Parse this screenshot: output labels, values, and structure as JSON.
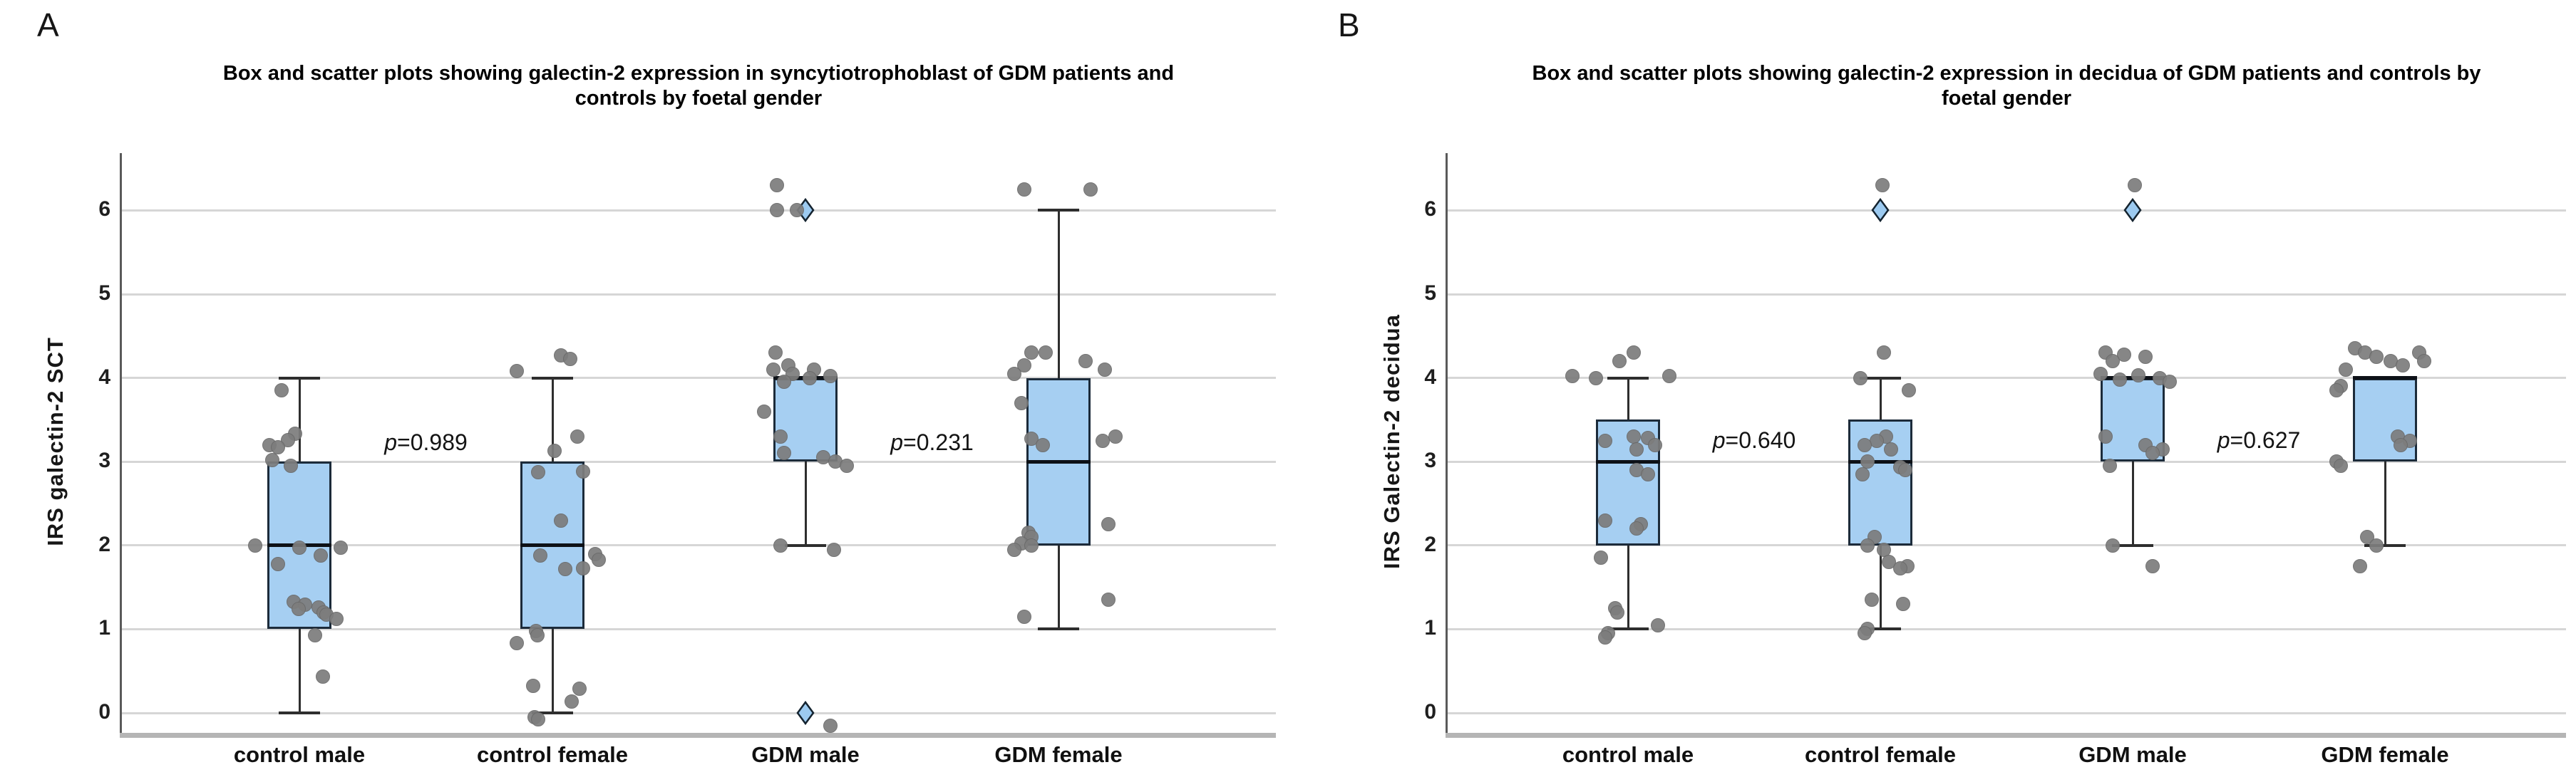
{
  "figure": {
    "panels": [
      {
        "corner_label": "A",
        "title_lines": [
          "Box and scatter plots showing galectin-2 expression in syncytiotrophoblast of GDM patients and",
          "controls by foetal gender"
        ],
        "y_axis_label": "IRS galectin-2 SCT"
      },
      {
        "corner_label": "B",
        "title_lines": [
          "Box and scatter plots showing galectin-2 expression in decidua of GDM patients and controls by",
          "foetal gender"
        ],
        "y_axis_label": "IRS Galectin-2 decidua"
      }
    ]
  },
  "colors": {
    "box_fill": "#a6cff2",
    "box_border": "#1c2b3a",
    "median": "#0d1117",
    "dot": "#7d7d7d",
    "outlier_fill": "#9ccaf0",
    "outlier_border": "#14232f",
    "gridline": "#d6d6d6"
  },
  "chart_data": [
    {
      "type": "box+scatter",
      "title": "Box and scatter plots showing galectin-2 expression in syncytiotrophoblast of GDM patients and controls by foetal gender",
      "ylabel": "IRS galectin-2 SCT",
      "xlabel": "",
      "categories": [
        "control male",
        "control female",
        "GDM male",
        "GDM female"
      ],
      "yticks": [
        0,
        1,
        2,
        3,
        4,
        5,
        6
      ],
      "ylim": [
        -0.25,
        6.7
      ],
      "grid": true,
      "legend": false,
      "boxes": [
        {
          "category": "control male",
          "q1": 1,
          "median": 2,
          "q3": 3,
          "whisker_low": 0,
          "whisker_high": 4,
          "outliers": []
        },
        {
          "category": "control female",
          "q1": 1,
          "median": 2,
          "q3": 3,
          "whisker_low": 0,
          "whisker_high": 4,
          "outliers": []
        },
        {
          "category": "GDM male",
          "q1": 3,
          "median": 4,
          "q3": 4,
          "whisker_low": 2,
          "whisker_high": 4,
          "outliers": [
            6,
            0
          ]
        },
        {
          "category": "GDM female",
          "q1": 2,
          "median": 3,
          "q3": 4,
          "whisker_low": 1,
          "whisker_high": 6,
          "outliers": []
        }
      ],
      "annotations": [
        {
          "text": "p=0.989",
          "between": [
            0,
            1
          ],
          "y": 3.22
        },
        {
          "text": "p=0.231",
          "between": [
            2,
            3
          ],
          "y": 3.22
        }
      ],
      "points": [
        {
          "cat": 0,
          "y": 3.85,
          "dx": -25
        },
        {
          "cat": 0,
          "y": 3.33,
          "dx": -6
        },
        {
          "cat": 0,
          "y": 3.26,
          "dx": -16
        },
        {
          "cat": 0,
          "y": 3.2,
          "dx": -42
        },
        {
          "cat": 0,
          "y": 3.17,
          "dx": -30
        },
        {
          "cat": 0,
          "y": 3.02,
          "dx": -38
        },
        {
          "cat": 0,
          "y": 2.95,
          "dx": -12
        },
        {
          "cat": 0,
          "y": 2.0,
          "dx": -62
        },
        {
          "cat": 0,
          "y": 1.97,
          "dx": 0
        },
        {
          "cat": 0,
          "y": 1.97,
          "dx": 58
        },
        {
          "cat": 0,
          "y": 1.88,
          "dx": 30
        },
        {
          "cat": 0,
          "y": 1.78,
          "dx": -30
        },
        {
          "cat": 0,
          "y": 1.33,
          "dx": -8
        },
        {
          "cat": 0,
          "y": 1.29,
          "dx": 8
        },
        {
          "cat": 0,
          "y": 1.26,
          "dx": 27
        },
        {
          "cat": 0,
          "y": 1.24,
          "dx": -1
        },
        {
          "cat": 0,
          "y": 1.2,
          "dx": 34
        },
        {
          "cat": 0,
          "y": 1.17,
          "dx": 38
        },
        {
          "cat": 0,
          "y": 1.12,
          "dx": 52
        },
        {
          "cat": 0,
          "y": 0.93,
          "dx": 22
        },
        {
          "cat": 0,
          "y": 0.43,
          "dx": 33
        },
        {
          "cat": 1,
          "y": 4.27,
          "dx": 12
        },
        {
          "cat": 1,
          "y": 4.23,
          "dx": 25
        },
        {
          "cat": 1,
          "y": 4.08,
          "dx": -50
        },
        {
          "cat": 1,
          "y": 3.3,
          "dx": 35
        },
        {
          "cat": 1,
          "y": 3.13,
          "dx": 3
        },
        {
          "cat": 1,
          "y": 2.88,
          "dx": 43
        },
        {
          "cat": 1,
          "y": 2.87,
          "dx": -20
        },
        {
          "cat": 1,
          "y": 2.3,
          "dx": 12
        },
        {
          "cat": 1,
          "y": 1.9,
          "dx": 60
        },
        {
          "cat": 1,
          "y": 1.88,
          "dx": -17
        },
        {
          "cat": 1,
          "y": 1.83,
          "dx": 65
        },
        {
          "cat": 1,
          "y": 1.73,
          "dx": 43
        },
        {
          "cat": 1,
          "y": 1.72,
          "dx": 18
        },
        {
          "cat": 1,
          "y": 0.98,
          "dx": -23
        },
        {
          "cat": 1,
          "y": 0.93,
          "dx": -21
        },
        {
          "cat": 1,
          "y": 0.83,
          "dx": -50
        },
        {
          "cat": 1,
          "y": 0.32,
          "dx": -27
        },
        {
          "cat": 1,
          "y": 0.29,
          "dx": 38
        },
        {
          "cat": 1,
          "y": 0.14,
          "dx": 27
        },
        {
          "cat": 1,
          "y": -0.05,
          "dx": -25
        },
        {
          "cat": 1,
          "y": -0.08,
          "dx": -20
        },
        {
          "cat": 2,
          "y": 6.3,
          "dx": -40
        },
        {
          "cat": 2,
          "y": 6.0,
          "dx": -40
        },
        {
          "cat": 2,
          "y": 6.0,
          "dx": -12
        },
        {
          "cat": 2,
          "y": 4.3,
          "dx": -42
        },
        {
          "cat": 2,
          "y": 4.15,
          "dx": -24
        },
        {
          "cat": 2,
          "y": 4.1,
          "dx": -45
        },
        {
          "cat": 2,
          "y": 4.1,
          "dx": 12
        },
        {
          "cat": 2,
          "y": 4.05,
          "dx": -18
        },
        {
          "cat": 2,
          "y": 4.02,
          "dx": 35
        },
        {
          "cat": 2,
          "y": 4.0,
          "dx": 6
        },
        {
          "cat": 2,
          "y": 3.95,
          "dx": -30
        },
        {
          "cat": 2,
          "y": 3.6,
          "dx": -58
        },
        {
          "cat": 2,
          "y": 3.3,
          "dx": -35
        },
        {
          "cat": 2,
          "y": 3.1,
          "dx": -30
        },
        {
          "cat": 2,
          "y": 3.05,
          "dx": 25
        },
        {
          "cat": 2,
          "y": 3.0,
          "dx": 42
        },
        {
          "cat": 2,
          "y": 2.95,
          "dx": 58
        },
        {
          "cat": 2,
          "y": 2.0,
          "dx": -35
        },
        {
          "cat": 2,
          "y": 1.95,
          "dx": 40
        },
        {
          "cat": 2,
          "y": -0.15,
          "dx": 35
        },
        {
          "cat": 3,
          "y": 6.25,
          "dx": -48
        },
        {
          "cat": 3,
          "y": 6.25,
          "dx": 45
        },
        {
          "cat": 3,
          "y": 4.3,
          "dx": -38
        },
        {
          "cat": 3,
          "y": 4.3,
          "dx": -18
        },
        {
          "cat": 3,
          "y": 4.2,
          "dx": 38
        },
        {
          "cat": 3,
          "y": 4.15,
          "dx": -48
        },
        {
          "cat": 3,
          "y": 4.1,
          "dx": 65
        },
        {
          "cat": 3,
          "y": 4.05,
          "dx": -62
        },
        {
          "cat": 3,
          "y": 3.7,
          "dx": -52
        },
        {
          "cat": 3,
          "y": 3.3,
          "dx": 80
        },
        {
          "cat": 3,
          "y": 3.27,
          "dx": -38
        },
        {
          "cat": 3,
          "y": 3.25,
          "dx": 62
        },
        {
          "cat": 3,
          "y": 3.2,
          "dx": -22
        },
        {
          "cat": 3,
          "y": 2.25,
          "dx": 70
        },
        {
          "cat": 3,
          "y": 2.15,
          "dx": -42
        },
        {
          "cat": 3,
          "y": 2.1,
          "dx": -38
        },
        {
          "cat": 3,
          "y": 2.02,
          "dx": -52
        },
        {
          "cat": 3,
          "y": 2.0,
          "dx": -38
        },
        {
          "cat": 3,
          "y": 1.95,
          "dx": -62
        },
        {
          "cat": 3,
          "y": 1.35,
          "dx": 70
        },
        {
          "cat": 3,
          "y": 1.15,
          "dx": -48
        }
      ]
    },
    {
      "type": "box+scatter",
      "title": "Box and scatter plots showing galectin-2 expression in decidua of GDM patients and controls by foetal gender",
      "ylabel": "IRS Galectin-2 decidua",
      "xlabel": "",
      "categories": [
        "control male",
        "control female",
        "GDM male",
        "GDM female"
      ],
      "yticks": [
        0,
        1,
        2,
        3,
        4,
        5,
        6
      ],
      "ylim": [
        -0.25,
        6.7
      ],
      "grid": true,
      "legend": false,
      "boxes": [
        {
          "category": "control male",
          "q1": 2,
          "median": 3,
          "q3": 3.5,
          "whisker_low": 1,
          "whisker_high": 4,
          "outliers": []
        },
        {
          "category": "control female",
          "q1": 2,
          "median": 3,
          "q3": 3.5,
          "whisker_low": 1,
          "whisker_high": 4,
          "outliers": [
            6
          ]
        },
        {
          "category": "GDM male",
          "q1": 3,
          "median": 4,
          "q3": 4,
          "whisker_low": 2,
          "whisker_high": 4,
          "outliers": [
            6
          ]
        },
        {
          "category": "GDM female",
          "q1": 3,
          "median": 4,
          "q3": 4,
          "whisker_low": 2,
          "whisker_high": 4,
          "outliers": []
        }
      ],
      "annotations": [
        {
          "text": "p=0.640",
          "between": [
            0,
            1
          ],
          "y": 3.25
        },
        {
          "text": "p=0.627",
          "between": [
            2,
            3
          ],
          "y": 3.25
        }
      ],
      "points": [
        {
          "cat": 0,
          "y": 4.3,
          "dx": 8
        },
        {
          "cat": 0,
          "y": 4.2,
          "dx": -12
        },
        {
          "cat": 0,
          "y": 4.02,
          "dx": -78
        },
        {
          "cat": 0,
          "y": 4.0,
          "dx": -45
        },
        {
          "cat": 0,
          "y": 4.02,
          "dx": 58
        },
        {
          "cat": 0,
          "y": 3.3,
          "dx": 8
        },
        {
          "cat": 0,
          "y": 3.28,
          "dx": 28
        },
        {
          "cat": 0,
          "y": 3.25,
          "dx": -32
        },
        {
          "cat": 0,
          "y": 3.2,
          "dx": 38
        },
        {
          "cat": 0,
          "y": 3.15,
          "dx": 12
        },
        {
          "cat": 0,
          "y": 2.9,
          "dx": 12
        },
        {
          "cat": 0,
          "y": 2.85,
          "dx": 28
        },
        {
          "cat": 0,
          "y": 2.3,
          "dx": -32
        },
        {
          "cat": 0,
          "y": 2.25,
          "dx": 18
        },
        {
          "cat": 0,
          "y": 2.2,
          "dx": 12
        },
        {
          "cat": 0,
          "y": 1.85,
          "dx": -38
        },
        {
          "cat": 0,
          "y": 1.25,
          "dx": -18
        },
        {
          "cat": 0,
          "y": 1.2,
          "dx": -15
        },
        {
          "cat": 0,
          "y": 1.05,
          "dx": 42
        },
        {
          "cat": 0,
          "y": 0.95,
          "dx": -28
        },
        {
          "cat": 0,
          "y": 0.9,
          "dx": -32
        },
        {
          "cat": 1,
          "y": 6.3,
          "dx": 3
        },
        {
          "cat": 1,
          "y": 4.3,
          "dx": 5
        },
        {
          "cat": 1,
          "y": 4.0,
          "dx": -28
        },
        {
          "cat": 1,
          "y": 3.85,
          "dx": 40
        },
        {
          "cat": 1,
          "y": 3.3,
          "dx": 8
        },
        {
          "cat": 1,
          "y": 3.25,
          "dx": -5
        },
        {
          "cat": 1,
          "y": 3.2,
          "dx": -22
        },
        {
          "cat": 1,
          "y": 3.15,
          "dx": 15
        },
        {
          "cat": 1,
          "y": 3.0,
          "dx": -18
        },
        {
          "cat": 1,
          "y": 2.93,
          "dx": 28
        },
        {
          "cat": 1,
          "y": 2.9,
          "dx": 35
        },
        {
          "cat": 1,
          "y": 2.85,
          "dx": -25
        },
        {
          "cat": 1,
          "y": 2.1,
          "dx": -8
        },
        {
          "cat": 1,
          "y": 2.0,
          "dx": -18
        },
        {
          "cat": 1,
          "y": 1.95,
          "dx": 5
        },
        {
          "cat": 1,
          "y": 1.8,
          "dx": 12
        },
        {
          "cat": 1,
          "y": 1.75,
          "dx": 38
        },
        {
          "cat": 1,
          "y": 1.73,
          "dx": 28
        },
        {
          "cat": 1,
          "y": 1.35,
          "dx": -12
        },
        {
          "cat": 1,
          "y": 1.3,
          "dx": 32
        },
        {
          "cat": 1,
          "y": 1.0,
          "dx": -18
        },
        {
          "cat": 1,
          "y": 0.95,
          "dx": -22
        },
        {
          "cat": 2,
          "y": 6.3,
          "dx": 3
        },
        {
          "cat": 2,
          "y": 4.3,
          "dx": -38
        },
        {
          "cat": 2,
          "y": 4.28,
          "dx": -12
        },
        {
          "cat": 2,
          "y": 4.25,
          "dx": 18
        },
        {
          "cat": 2,
          "y": 4.2,
          "dx": -28
        },
        {
          "cat": 2,
          "y": 4.05,
          "dx": -45
        },
        {
          "cat": 2,
          "y": 4.03,
          "dx": 8
        },
        {
          "cat": 2,
          "y": 4.0,
          "dx": 38
        },
        {
          "cat": 2,
          "y": 3.98,
          "dx": -18
        },
        {
          "cat": 2,
          "y": 3.95,
          "dx": 52
        },
        {
          "cat": 2,
          "y": 3.3,
          "dx": -38
        },
        {
          "cat": 2,
          "y": 3.2,
          "dx": 18
        },
        {
          "cat": 2,
          "y": 3.15,
          "dx": 42
        },
        {
          "cat": 2,
          "y": 3.1,
          "dx": 28
        },
        {
          "cat": 2,
          "y": 2.95,
          "dx": -32
        },
        {
          "cat": 2,
          "y": 2.0,
          "dx": -28
        },
        {
          "cat": 2,
          "y": 1.75,
          "dx": 28
        },
        {
          "cat": 3,
          "y": 4.35,
          "dx": -42
        },
        {
          "cat": 3,
          "y": 4.3,
          "dx": -28
        },
        {
          "cat": 3,
          "y": 4.3,
          "dx": 48
        },
        {
          "cat": 3,
          "y": 4.25,
          "dx": -12
        },
        {
          "cat": 3,
          "y": 4.2,
          "dx": 8
        },
        {
          "cat": 3,
          "y": 4.2,
          "dx": 55
        },
        {
          "cat": 3,
          "y": 4.15,
          "dx": 25
        },
        {
          "cat": 3,
          "y": 4.1,
          "dx": -55
        },
        {
          "cat": 3,
          "y": 3.9,
          "dx": -62
        },
        {
          "cat": 3,
          "y": 3.85,
          "dx": -68
        },
        {
          "cat": 3,
          "y": 3.3,
          "dx": 18
        },
        {
          "cat": 3,
          "y": 3.25,
          "dx": 35
        },
        {
          "cat": 3,
          "y": 3.2,
          "dx": 22
        },
        {
          "cat": 3,
          "y": 3.0,
          "dx": -68
        },
        {
          "cat": 3,
          "y": 2.95,
          "dx": -62
        },
        {
          "cat": 3,
          "y": 2.1,
          "dx": -25
        },
        {
          "cat": 3,
          "y": 2.0,
          "dx": -12
        },
        {
          "cat": 3,
          "y": 1.75,
          "dx": -35
        }
      ]
    }
  ]
}
